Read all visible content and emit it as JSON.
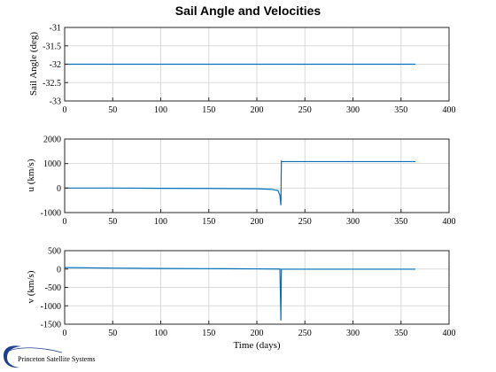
{
  "chart_data": [
    {
      "type": "line",
      "title": "Sail Angle and Velocities",
      "xlabel": "",
      "ylabel": "Sail Angle (deg)",
      "xlim": [
        0,
        400
      ],
      "ylim": [
        -33,
        -31
      ],
      "xticks": [
        0,
        50,
        100,
        150,
        200,
        250,
        300,
        350,
        400
      ],
      "yticks": [
        -33,
        -32.5,
        -32,
        -31.5,
        -31
      ],
      "grid": true,
      "series": [
        {
          "color": "#0072BD",
          "x": [
            0,
            365
          ],
          "y": [
            -32,
            -32
          ]
        }
      ]
    },
    {
      "type": "line",
      "title": "",
      "xlabel": "",
      "ylabel": "u (km/s)",
      "xlim": [
        0,
        400
      ],
      "ylim": [
        -1000,
        2000
      ],
      "xticks": [
        0,
        50,
        100,
        150,
        200,
        250,
        300,
        350,
        400
      ],
      "yticks": [
        -1000,
        0,
        1000,
        2000
      ],
      "grid": true,
      "series": [
        {
          "color": "#0072BD",
          "x": [
            0,
            50,
            100,
            150,
            200,
            215,
            222,
            224,
            225,
            225.5,
            226,
            230,
            300,
            365
          ],
          "y": [
            0,
            0,
            -10,
            -15,
            -30,
            -50,
            -100,
            -300,
            -700,
            1100,
            1080,
            1080,
            1080,
            1080
          ]
        }
      ]
    },
    {
      "type": "line",
      "title": "",
      "xlabel": "Time (days)",
      "ylabel": "v (km/s)",
      "xlim": [
        0,
        400
      ],
      "ylim": [
        -1500,
        500
      ],
      "xticks": [
        0,
        50,
        100,
        150,
        200,
        250,
        300,
        350,
        400
      ],
      "yticks": [
        -1500,
        -1000,
        -500,
        0,
        500
      ],
      "grid": true,
      "series": [
        {
          "color": "#0072BD",
          "x": [
            0,
            50,
            100,
            150,
            200,
            224,
            225,
            225.5,
            226,
            230,
            300,
            365
          ],
          "y": [
            40,
            25,
            15,
            10,
            5,
            0,
            -1400,
            -5,
            -5,
            -5,
            -5,
            -5
          ]
        }
      ]
    }
  ],
  "logo": {
    "text": "Princeton Satellite Systems"
  }
}
